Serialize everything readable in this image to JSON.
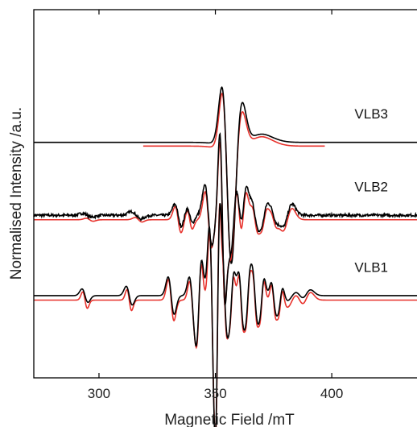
{
  "chart_data": {
    "type": "line",
    "xlabel": "Magnetic Field /mT",
    "ylabel": "Normalised Intensity /a.u.",
    "xlim": [
      272,
      438
    ],
    "x_ticks": [
      300,
      350,
      400
    ],
    "y_ticks": [],
    "grid": false,
    "colors": {
      "experimental": "#000000",
      "simulated": "#e8322c"
    },
    "spectra": [
      {
        "label": "VLB3",
        "baseline": 0.0,
        "experimental": {
          "x_range": [
            272,
            438
          ],
          "peaks": [
            [
              355,
              1.8,
              2.0
            ],
            [
              359,
              -1.25,
              2.4
            ],
            [
              364,
              -0.22,
              6.0
            ]
          ]
        },
        "simulated": {
          "x_range": [
            319,
            397
          ],
          "offset": -0.1,
          "peaks": [
            [
              355,
              1.75,
              1.9
            ],
            [
              359,
              -1.1,
              2.4
            ],
            [
              364,
              -0.25,
              6.0
            ]
          ]
        }
      },
      {
        "label": "VLB2",
        "baseline": -1.95,
        "experimental": {
          "x_range": [
            272,
            438
          ],
          "noise": true,
          "peaks": [
            [
              295,
              0.05,
              2
            ],
            [
              316,
              0.1,
              2
            ],
            [
              334,
              0.3,
              1.4
            ],
            [
              339,
              0.2,
              1.2
            ],
            [
              347,
              0.8,
              1.5
            ],
            [
              353,
              2.2,
              1.1
            ],
            [
              358,
              -1.0,
              1.6
            ],
            [
              362,
              -0.7,
              1.4
            ],
            [
              367,
              0.3,
              1.3
            ],
            [
              371,
              -0.25,
              1.3
            ],
            [
              375,
              0.15,
              1.3
            ],
            [
              381,
              -0.3,
              2.0
            ]
          ]
        },
        "simulated": {
          "x_range": [
            272,
            438
          ],
          "offset": -0.12,
          "peaks": [
            [
              296,
              0.04,
              1.5
            ],
            [
              317,
              0.06,
              1.5
            ],
            [
              334,
              0.35,
              1.3
            ],
            [
              339,
              0.25,
              1.1
            ],
            [
              347,
              0.75,
              1.4
            ],
            [
              353,
              2.1,
              1.1
            ],
            [
              358,
              -1.0,
              1.5
            ],
            [
              362,
              -0.7,
              1.3
            ],
            [
              367,
              0.3,
              1.2
            ],
            [
              371,
              -0.25,
              1.2
            ],
            [
              375,
              0.15,
              1.2
            ],
            [
              381,
              -0.3,
              2.0
            ]
          ]
        }
      },
      {
        "label": "VLB1",
        "baseline": -4.1,
        "experimental": {
          "x_range": [
            272,
            438
          ],
          "peaks": [
            [
              294,
              0.18,
              1.3
            ],
            [
              313,
              0.25,
              1.3
            ],
            [
              331,
              0.5,
              1.3
            ],
            [
              340,
              0.5,
              1.2
            ],
            [
              343,
              -0.95,
              1.1
            ],
            [
              348.5,
              1.85,
              1.1
            ],
            [
              351,
              -2.2,
              0.9
            ],
            [
              354,
              0.8,
              1.0
            ],
            [
              357,
              -0.6,
              1.0
            ],
            [
              361,
              0.6,
              1.0
            ],
            [
              364,
              -0.55,
              1.0
            ],
            [
              367,
              0.5,
              1.0
            ],
            [
              370,
              -0.45,
              1.0
            ],
            [
              375,
              0.35,
              1.0
            ],
            [
              378,
              -0.3,
              1.0
            ],
            [
              383,
              -0.15,
              2.5
            ],
            [
              389,
              -0.15,
              2.0
            ]
          ]
        },
        "simulated": {
          "x_range": [
            272,
            438
          ],
          "offset": -0.12,
          "peaks": [
            [
              294,
              0.22,
              1.0
            ],
            [
              313,
              0.28,
              1.0
            ],
            [
              331,
              0.55,
              1.2
            ],
            [
              340,
              0.5,
              1.1
            ],
            [
              343,
              -0.95,
              1.0
            ],
            [
              348.5,
              1.85,
              1.0
            ],
            [
              351,
              -2.4,
              0.8
            ],
            [
              354,
              0.85,
              0.9
            ],
            [
              357,
              -0.6,
              0.9
            ],
            [
              361,
              0.65,
              0.9
            ],
            [
              364,
              -0.6,
              0.9
            ],
            [
              367,
              0.55,
              0.9
            ],
            [
              370,
              -0.5,
              0.9
            ],
            [
              375,
              0.4,
              0.9
            ],
            [
              378,
              -0.35,
              0.9
            ],
            [
              383,
              -0.2,
              2.3
            ],
            [
              389,
              -0.2,
              2.0
            ]
          ]
        }
      }
    ]
  }
}
